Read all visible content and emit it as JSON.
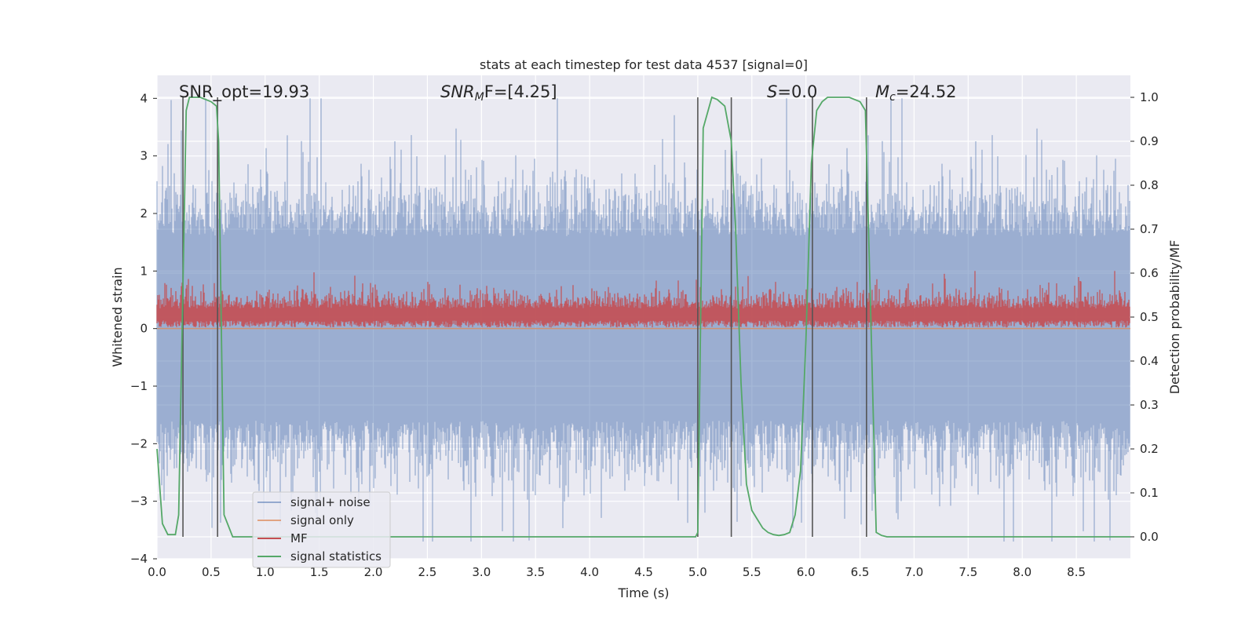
{
  "chart_data": {
    "type": "line",
    "title": "stats at each timestep for test data 4537 [signal=0]",
    "xlabel": "Time (s)",
    "ylabel_left": "Whitened strain",
    "ylabel_right": "Detection probability/MF",
    "xlim": [
      0.0,
      9.0
    ],
    "ylim_left": [
      -4.0,
      4.4
    ],
    "ylim_right": [
      -0.05,
      1.05
    ],
    "grid": true,
    "legend_position": "lower-left",
    "x_ticks": [
      "0.0",
      "0.5",
      "1.0",
      "1.5",
      "2.0",
      "2.5",
      "3.0",
      "3.5",
      "4.0",
      "4.5",
      "5.0",
      "5.5",
      "6.0",
      "6.5",
      "7.0",
      "7.5",
      "8.0",
      "8.5"
    ],
    "y_ticks_left": [
      "4",
      "3",
      "2",
      "1",
      "0",
      "−1",
      "−2",
      "−3",
      "−4"
    ],
    "y_ticks_right": [
      "1.0",
      "0.9",
      "0.8",
      "0.7",
      "0.6",
      "0.5",
      "0.4",
      "0.3",
      "0.2",
      "0.1",
      "0.0"
    ],
    "annotations": {
      "snr_opt": "SNR_opt=19.93",
      "snr_mf_name": "SNR",
      "snr_mf_sub": "M",
      "snr_mf_rest": "F=[4.25]",
      "s_name": "S",
      "s_rest": "=0.0",
      "mc_name": "M",
      "mc_sub": "c",
      "mc_rest": "=24.52"
    },
    "vertical_markers_s": [
      0.24,
      0.56,
      5.0,
      5.31,
      6.06,
      6.56
    ],
    "series": [
      {
        "name": "signal+ noise",
        "color": "#4c72b0",
        "axis": "left",
        "style": "noise band, amplitude about ±2 with peaks up to ±4"
      },
      {
        "name": "signal only",
        "color": "#dd8452",
        "axis": "left",
        "values_note": "flat at 0"
      },
      {
        "name": "MF",
        "color": "#c44e52",
        "axis": "left",
        "style": "noise band roughly 0 to 0.8"
      },
      {
        "name": "signal statistics",
        "color": "#55a868",
        "axis": "right",
        "x": [
          0.0,
          0.05,
          0.1,
          0.17,
          0.2,
          0.25,
          0.27,
          0.3,
          0.35,
          0.4,
          0.45,
          0.5,
          0.55,
          0.57,
          0.62,
          0.7,
          0.8,
          1.0,
          2.0,
          3.0,
          4.0,
          4.98,
          5.0,
          5.05,
          5.13,
          5.18,
          5.25,
          5.31,
          5.35,
          5.4,
          5.45,
          5.5,
          5.55,
          5.6,
          5.65,
          5.7,
          5.75,
          5.8,
          5.85,
          5.9,
          5.95,
          6.0,
          6.05,
          6.1,
          6.15,
          6.2,
          6.25,
          6.3,
          6.4,
          6.5,
          6.55,
          6.6,
          6.65,
          6.7,
          6.75,
          7.0,
          8.0,
          9.0
        ],
        "values": [
          0.2,
          0.03,
          0.005,
          0.005,
          0.05,
          0.7,
          0.97,
          1.0,
          1.0,
          1.0,
          0.995,
          0.99,
          0.98,
          0.9,
          0.05,
          0.0,
          0.0,
          0.0,
          0.0,
          0.0,
          0.0,
          0.0,
          0.01,
          0.93,
          1.0,
          0.995,
          0.98,
          0.9,
          0.7,
          0.35,
          0.12,
          0.06,
          0.04,
          0.02,
          0.01,
          0.005,
          0.003,
          0.005,
          0.01,
          0.05,
          0.15,
          0.45,
          0.85,
          0.97,
          0.99,
          1.0,
          1.0,
          1.0,
          1.0,
          0.99,
          0.97,
          0.5,
          0.01,
          0.003,
          0.0,
          0.0,
          0.0,
          0.0
        ]
      }
    ]
  }
}
